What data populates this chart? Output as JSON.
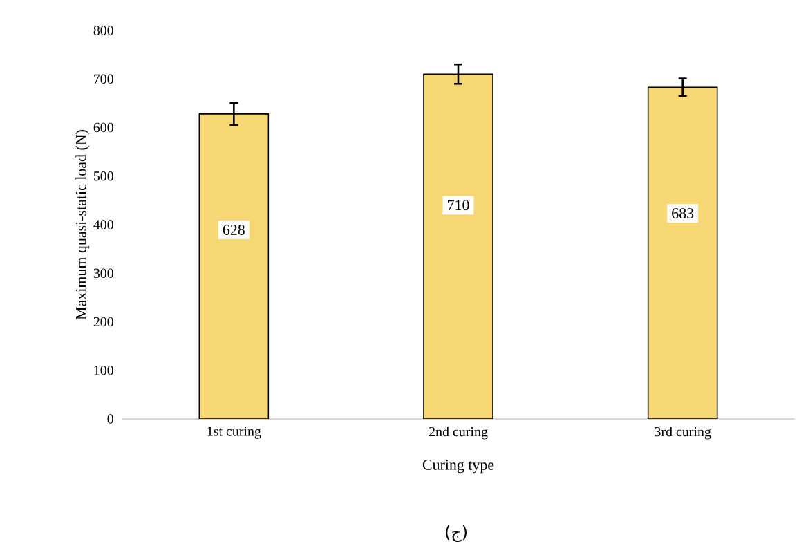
{
  "chart_data": {
    "type": "bar",
    "xlabel": "Curing type",
    "ylabel": "Maximum quasi-static load (N)",
    "categories": [
      "1st curing",
      "2nd curing",
      "3rd curing"
    ],
    "values": [
      628,
      710,
      683
    ],
    "errors": [
      23,
      20,
      18
    ],
    "color": "#f7d774",
    "data_labels": true,
    "ylim": [
      0,
      800
    ],
    "yticks": [
      0,
      100,
      200,
      300,
      400,
      500,
      600,
      700,
      800
    ],
    "annotations": [
      "(ج)"
    ]
  }
}
